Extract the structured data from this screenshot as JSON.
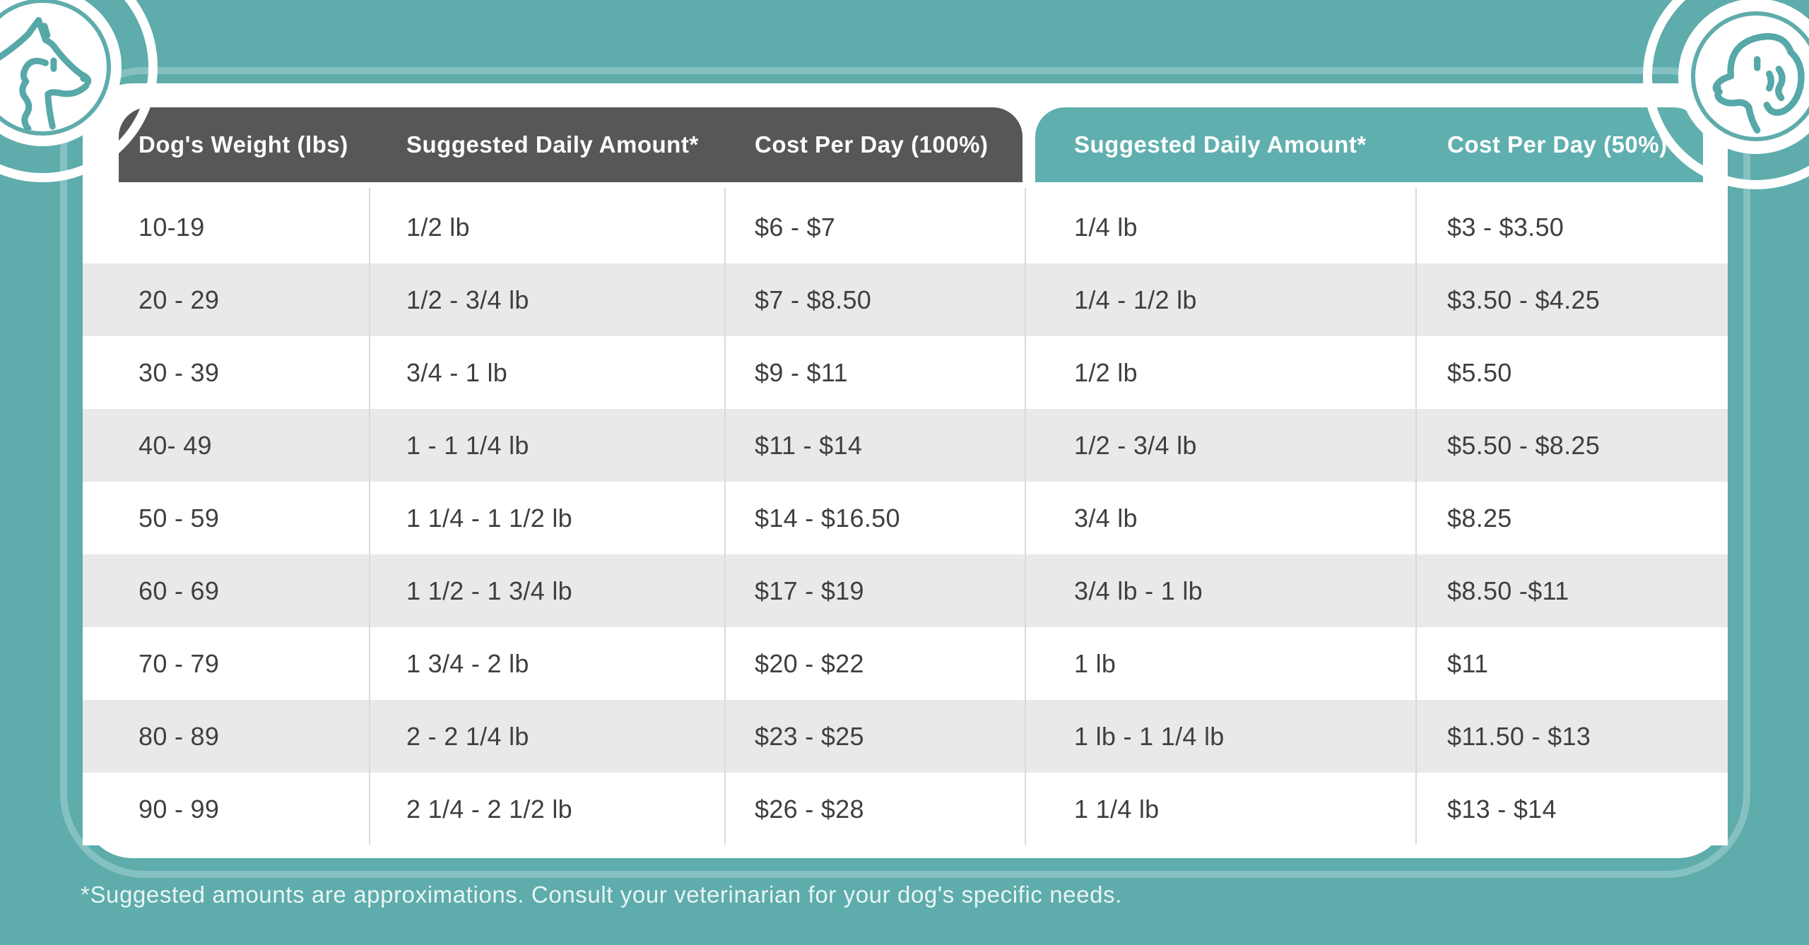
{
  "page": {
    "background_color": "#5EACAC",
    "card_color": "#FFFFFF",
    "header_dark_color": "#575757",
    "header_teal_color": "#60AFAF",
    "stripe_color": "#E9E9E9",
    "accent_teal": "#57A8A8",
    "footnote": "*Suggested amounts are approximations. Consult your veterinarian for your dog's specific needs."
  },
  "icons": {
    "left": "pointed-ear-dog-head-line-art",
    "right": "floppy-ear-dog-head-line-art"
  },
  "chart_data": {
    "type": "table",
    "title": "",
    "columns": [
      "Dog's Weight (lbs)",
      "Suggested Daily Amount*",
      "Cost Per Day (100%)",
      "Suggested Daily Amount*",
      "Cost Per Day (50%)"
    ],
    "rows": [
      [
        "10-19",
        "1/2 lb",
        "$6 - $7",
        "1/4 lb",
        "$3 - $3.50"
      ],
      [
        "20 - 29",
        "1/2 - 3/4 lb",
        "$7 - $8.50",
        "1/4 - 1/2 lb",
        "$3.50 - $4.25"
      ],
      [
        "30 - 39",
        "3/4 - 1 lb",
        "$9 - $11",
        "1/2 lb",
        "$5.50"
      ],
      [
        "40- 49",
        "1 - 1 1/4 lb",
        "$11 - $14",
        "1/2 - 3/4 lb",
        "$5.50 - $8.25"
      ],
      [
        "50 - 59",
        "1 1/4 - 1 1/2 lb",
        "$14 - $16.50",
        "3/4 lb",
        "$8.25"
      ],
      [
        "60 - 69",
        "1 1/2 - 1 3/4 lb",
        "$17 - $19",
        "3/4 lb - 1 lb",
        "$8.50 -$11"
      ],
      [
        "70 - 79",
        "1 3/4 - 2 lb",
        "$20 - $22",
        "1 lb",
        "$11"
      ],
      [
        "80 - 89",
        "2 - 2 1/4 lb",
        "$23 - $25",
        "1 lb - 1 1/4 lb",
        "$11.50 - $13"
      ],
      [
        "90 - 99",
        "2 1/4 - 2 1/2 lb",
        "$26 - $28",
        "1 1/4 lb",
        "$13 - $14"
      ]
    ],
    "layout": {
      "striped_rows": "even rows shaded gray, first row white",
      "left_header_columns": 3,
      "right_header_columns": 2
    }
  }
}
